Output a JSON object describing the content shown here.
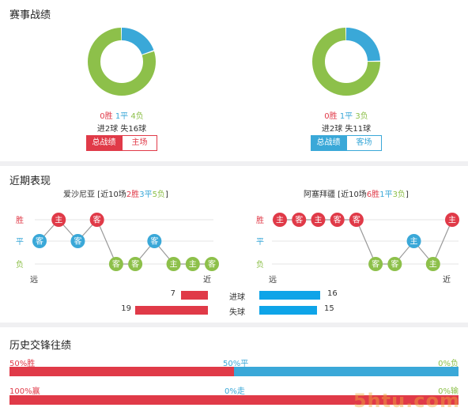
{
  "sections": {
    "record_title": "赛事战绩",
    "recent_title": "近期表现",
    "history_title": "历史交锋往绩"
  },
  "record": {
    "left": {
      "win": "0胜",
      "draw": "1平",
      "loss": "4负",
      "goals": "进2球",
      "conceded": "失16球",
      "tab_active": "总战绩",
      "tab_other": "主场",
      "donut": {
        "draw_fraction": 0.2,
        "loss_fraction": 0.8
      }
    },
    "right": {
      "win": "0胜",
      "draw": "1平",
      "loss": "3负",
      "goals": "进2球",
      "conceded": "失11球",
      "tab_active": "总战绩",
      "tab_other": "客场",
      "donut": {
        "draw_fraction": 0.25,
        "loss_fraction": 0.75
      }
    }
  },
  "recent": {
    "left": {
      "team": "爱沙尼亚",
      "summary_prefix": " [近10场",
      "wins": "2胜",
      "draws": "3平",
      "losses": "5负",
      "summary_suffix": "]",
      "y_win": "胜",
      "y_draw": "平",
      "y_loss": "负",
      "x_far": "远",
      "x_near": "近",
      "matches": [
        {
          "result": "D",
          "venue": "客"
        },
        {
          "result": "W",
          "venue": "主"
        },
        {
          "result": "D",
          "venue": "客"
        },
        {
          "result": "W",
          "venue": "客"
        },
        {
          "result": "L",
          "venue": "客"
        },
        {
          "result": "L",
          "venue": "客"
        },
        {
          "result": "D",
          "venue": "客"
        },
        {
          "result": "L",
          "venue": "主"
        },
        {
          "result": "L",
          "venue": "主"
        },
        {
          "result": "L",
          "venue": "客"
        }
      ]
    },
    "right": {
      "team": "阿塞拜疆",
      "summary_prefix": " [近10场",
      "wins": "6胜",
      "draws": "1平",
      "losses": "3负",
      "summary_suffix": "]",
      "y_win": "胜",
      "y_draw": "平",
      "y_loss": "负",
      "x_far": "远",
      "x_near": "近",
      "matches": [
        {
          "result": "W",
          "venue": "主"
        },
        {
          "result": "W",
          "venue": "客"
        },
        {
          "result": "W",
          "venue": "主"
        },
        {
          "result": "W",
          "venue": "客"
        },
        {
          "result": "W",
          "venue": "客"
        },
        {
          "result": "L",
          "venue": "客"
        },
        {
          "result": "L",
          "venue": "客"
        },
        {
          "result": "D",
          "venue": "主"
        },
        {
          "result": "L",
          "venue": "主"
        },
        {
          "result": "W",
          "venue": "主"
        }
      ]
    },
    "goals_label": "进球",
    "conceded_label": "失球",
    "left_goals": "7",
    "left_conceded": "19",
    "right_goals": "16",
    "right_conceded": "15",
    "goal_values": {
      "left_goals": 7,
      "left_conceded": 19,
      "right_goals": 16,
      "right_conceded": 15
    }
  },
  "history": {
    "row1": {
      "left": "50%胜",
      "mid": "50%平",
      "right": "0%负",
      "left_fraction": 0.5
    },
    "row2": {
      "left": "100%赢",
      "mid": "0%走",
      "right": "0%输",
      "left_fraction": 1.0
    }
  },
  "watermark": "5htu.com",
  "colors": {
    "red": "#e03a48",
    "blue": "#3aa8d8",
    "green": "#8dc04a"
  }
}
